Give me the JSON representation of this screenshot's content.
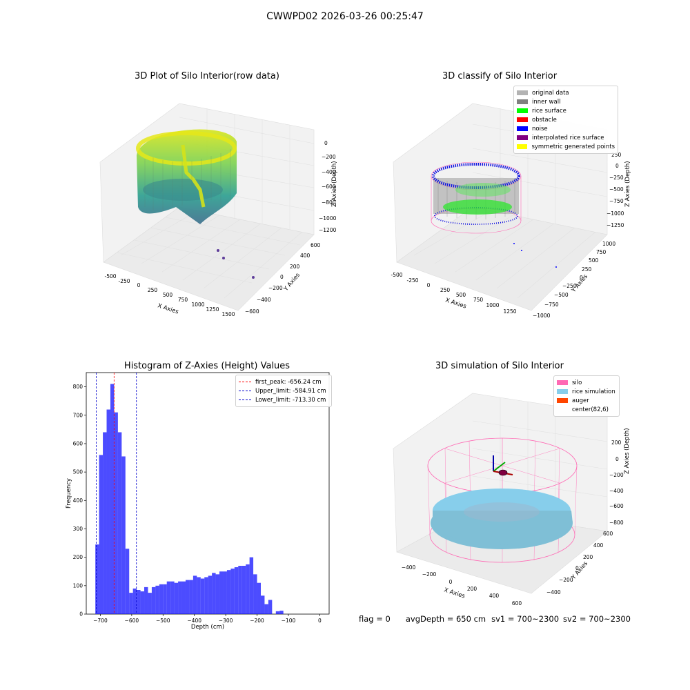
{
  "suptitle": "CWWPD02 2026-03-26 00:25:47",
  "plots": {
    "raw": {
      "title": "3D Plot of Silo Interior(row data)",
      "xlabel": "X Axies",
      "ylabel": "Y Axies",
      "zlabel": "Z Axies (Depth)",
      "xticks": [
        "-500",
        "-250",
        "0",
        "250",
        "500",
        "750",
        "1000",
        "1250",
        "1500"
      ],
      "yticks": [
        "600",
        "400",
        "200",
        "0",
        "−200",
        "−400",
        "−600"
      ],
      "zticks": [
        "0",
        "−200",
        "−400",
        "−600",
        "−800",
        "−1000",
        "−1200"
      ]
    },
    "classify": {
      "title": "3D classify of Silo Interior",
      "xlabel": "X Axies",
      "ylabel": "Y Axies",
      "zlabel": "Z Axies (Depth)",
      "xticks": [
        "-500",
        "-250",
        "0",
        "250",
        "500",
        "750",
        "1000",
        "1250"
      ],
      "yticks": [
        "1000",
        "750",
        "500",
        "250",
        "0",
        "−250",
        "−500",
        "−750",
        "−1000"
      ],
      "zticks": [
        "250",
        "0",
        "−250",
        "−500",
        "−750",
        "−1000",
        "−1250"
      ],
      "legend": [
        {
          "label": "original data",
          "color": "#b3b3b3"
        },
        {
          "label": "inner wall",
          "color": "#808080"
        },
        {
          "label": "rice surface",
          "color": "#00ff00"
        },
        {
          "label": "obstacle",
          "color": "#ff0000"
        },
        {
          "label": "noise",
          "color": "#0000ff"
        },
        {
          "label": "interpolated rice surface",
          "color": "#800080"
        },
        {
          "label": "symmetric generated points",
          "color": "#ffff00"
        }
      ]
    },
    "simulation": {
      "title": "3D simulation of Silo Interior",
      "xlabel": "X Axies",
      "ylabel": "Y Axies",
      "zlabel": "Z Axies (Depth)",
      "xticks": [
        "−400",
        "−200",
        "0",
        "200",
        "400",
        "600"
      ],
      "yticks": [
        "600",
        "400",
        "200",
        "0",
        "−200",
        "−400"
      ],
      "zticks": [
        "200",
        "0",
        "−200",
        "−400",
        "−600",
        "−800"
      ],
      "legend": [
        {
          "label": "silo",
          "color": "#ff69b4"
        },
        {
          "label": "rice simulation",
          "color": "#87ceeb"
        },
        {
          "label": "auger",
          "color": "#ff4500"
        },
        {
          "label": "center(82,6)",
          "color": ""
        }
      ]
    }
  },
  "chart_data": {
    "type": "bar",
    "title": "Histogram of Z-Axies (Height) Values",
    "xlabel": "Depth (cm)",
    "ylabel": "Frequency",
    "xlim": [
      -745,
      30
    ],
    "ylim": [
      0,
      850
    ],
    "xticks": [
      -700,
      -600,
      -500,
      -400,
      -300,
      -200,
      -100,
      0
    ],
    "yticks": [
      0,
      100,
      200,
      300,
      400,
      500,
      600,
      700,
      800
    ],
    "bar_color": "#0000ff",
    "bin_width": 12,
    "bins_start": [
      -716,
      -704,
      -692,
      -680,
      -668,
      -656,
      -644,
      -632,
      -620,
      -608,
      -596,
      -584,
      -572,
      -560,
      -548,
      -536,
      -524,
      -512,
      -500,
      -488,
      -476,
      -464,
      -452,
      -440,
      -428,
      -416,
      -404,
      -392,
      -380,
      -368,
      -356,
      -344,
      -332,
      -320,
      -308,
      -296,
      -284,
      -272,
      -260,
      -248,
      -236,
      -224,
      -212,
      -200,
      -188,
      -176,
      -164,
      -152,
      -140,
      -128,
      -116,
      -104,
      -92,
      -80,
      -68,
      -56,
      -44,
      -32,
      -20,
      -8
    ],
    "counts": [
      245,
      560,
      640,
      720,
      810,
      710,
      640,
      555,
      230,
      75,
      90,
      85,
      80,
      95,
      75,
      95,
      100,
      105,
      105,
      115,
      115,
      110,
      115,
      115,
      120,
      120,
      135,
      130,
      125,
      130,
      135,
      145,
      140,
      150,
      150,
      155,
      160,
      165,
      170,
      170,
      175,
      200,
      140,
      110,
      65,
      35,
      50,
      0,
      10,
      12,
      0,
      0,
      0,
      0,
      0,
      0,
      0,
      0,
      0,
      0
    ],
    "lines": [
      {
        "label": "first_peak: -656.24 cm",
        "x": -656.24,
        "color": "#ff0000"
      },
      {
        "label": "Upper_limit: -584.91 cm",
        "x": -584.91,
        "color": "#0000cd"
      },
      {
        "label": "Lower_limit: -713.30 cm",
        "x": -713.3,
        "color": "#0000cd"
      }
    ],
    "legend_position": "upper right"
  },
  "status": {
    "flag": "flag = 0",
    "avg_depth": "avgDepth = 650 cm",
    "sv1": "sv1 = 700~2300",
    "sv2": "sv2 = 700~2300"
  }
}
